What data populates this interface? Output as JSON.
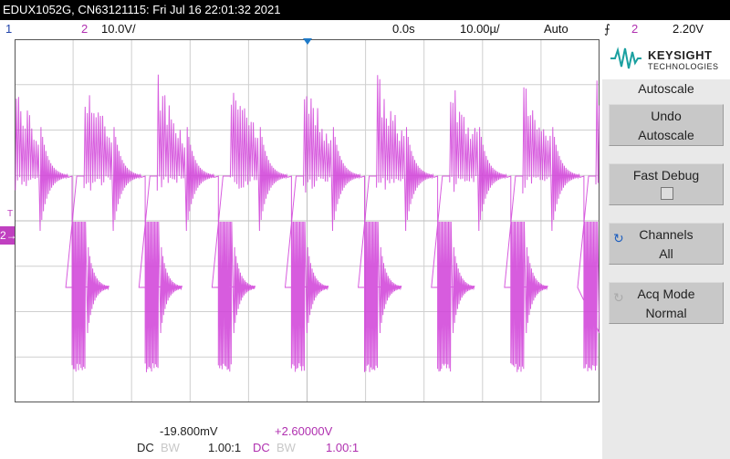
{
  "window": {
    "title": "EDUX1052G, CN63121115: Fri Jul 16 22:01:32 2021"
  },
  "status_bar": {
    "ch1_label": "1",
    "ch2_label": "2",
    "ch2_scale": "10.0V/",
    "delay": "0.0s",
    "timebase": "10.00µ/",
    "trigger_mode": "Auto",
    "trigger_slope_icon": "⨍",
    "trigger_source": "2",
    "trigger_level": "2.20V"
  },
  "graticule": {
    "markers": {
      "trigger_time": "▼",
      "trigger_level": "T",
      "ch2_ground": "2→"
    }
  },
  "trace": {
    "color": "#d040d8",
    "cycles": 8
  },
  "side_panel": {
    "brand": "KEYSIGHT",
    "brand_sub": "TECHNOLOGIES",
    "menu_title": "Autoscale",
    "softkeys": [
      {
        "line1": "Undo",
        "line2": "Autoscale"
      },
      {
        "line1": "Fast Debug",
        "line2": ""
      },
      {
        "icon": "↻",
        "line1": "Channels",
        "line2": "All"
      },
      {
        "icon": "↻",
        "line1": "Acq Mode",
        "line2": "Normal"
      }
    ]
  },
  "bottom_bar": {
    "ch1_offset": "-19.800mV",
    "ch2_offset": "+2.60000V",
    "ch1_coupling": "DC",
    "ch1_bw": "BW",
    "ch1_probe": "1.00:1",
    "ch2_coupling": "DC",
    "ch2_bw": "BW",
    "ch2_probe": "1.00:1"
  },
  "colors": {
    "ch1": "#2244aa",
    "ch2": "#b030b0",
    "trace": "#d040d8",
    "marker": "#1e7ac8"
  }
}
